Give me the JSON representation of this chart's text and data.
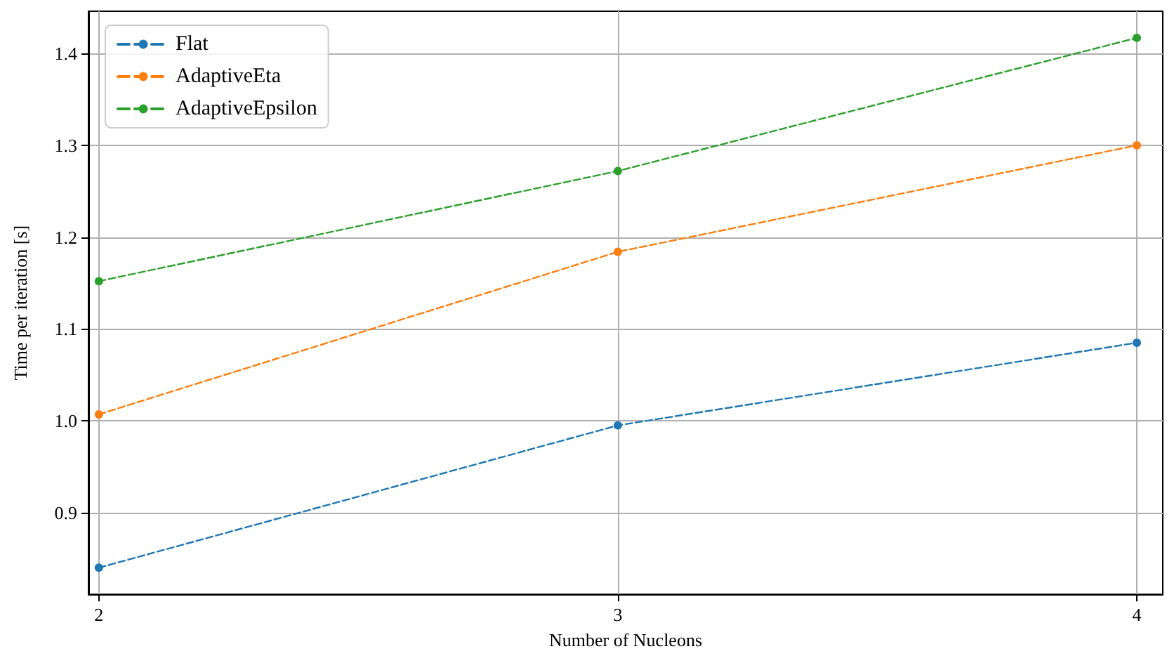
{
  "chart_data": {
    "type": "line",
    "xlabel": "Number of Nucleons",
    "ylabel": "Time per iteration [s]",
    "x": [
      2,
      3,
      4
    ],
    "series": [
      {
        "name": "Flat",
        "color": "#1f77b4",
        "values": [
          0.84,
          0.995,
          1.085
        ]
      },
      {
        "name": "AdaptiveEta",
        "color": "#ff7f0e",
        "values": [
          1.007,
          1.184,
          1.3
        ]
      },
      {
        "name": "AdaptiveEpsilon",
        "color": "#2ca02c",
        "values": [
          1.152,
          1.272,
          1.417
        ]
      }
    ],
    "xlim": [
      1.98,
      4.05
    ],
    "xticks": [
      2,
      3,
      4
    ],
    "ylim": [
      0.811,
      1.446
    ],
    "yticks": [
      0.9,
      {
        "value": 1,
        "label": "1.0"
      },
      1.1,
      1.2,
      1.3,
      1.4
    ],
    "grid": true,
    "legend": "top left",
    "marker": "circle",
    "line_style": "dashed"
  }
}
